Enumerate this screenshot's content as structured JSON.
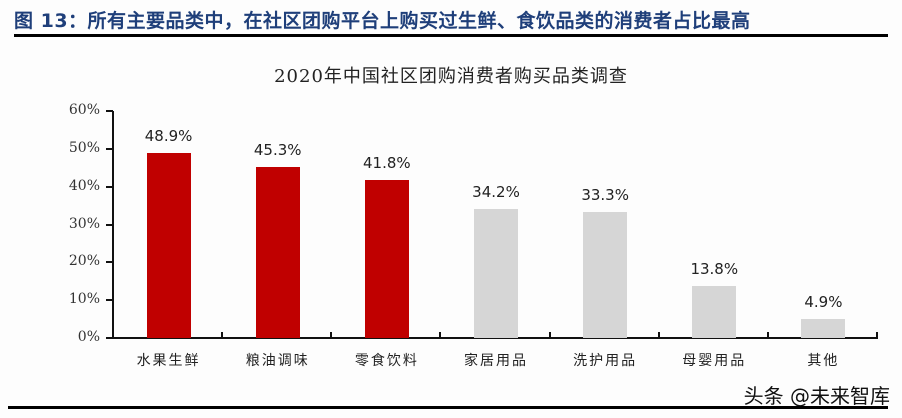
{
  "figure": {
    "title": "图 13：所有主要品类中，在社区团购平台上购买过生鲜、食饮品类的消费者占比最高",
    "watermark": "头条 @未来智库"
  },
  "chart_data": {
    "type": "bar",
    "title": "2020年中国社区团购消费者购买品类调查",
    "xlabel": "",
    "ylabel": "",
    "categories": [
      "水果生鲜",
      "粮油调味",
      "零食饮料",
      "家居用品",
      "洗护用品",
      "母婴用品",
      "其他"
    ],
    "values": [
      48.9,
      45.3,
      41.8,
      34.2,
      33.3,
      13.8,
      4.9
    ],
    "value_labels": [
      "48.9%",
      "45.3%",
      "41.8%",
      "34.2%",
      "33.3%",
      "13.8%",
      "4.9%"
    ],
    "bar_colors": [
      "#c00000",
      "#c00000",
      "#c00000",
      "#d6d6d6",
      "#d6d6d6",
      "#d6d6d6",
      "#d6d6d6"
    ],
    "ylim": [
      0,
      60
    ],
    "yticks": [
      "0%",
      "10%",
      "20%",
      "30%",
      "40%",
      "50%",
      "60%"
    ],
    "grid": false,
    "legend": null
  }
}
